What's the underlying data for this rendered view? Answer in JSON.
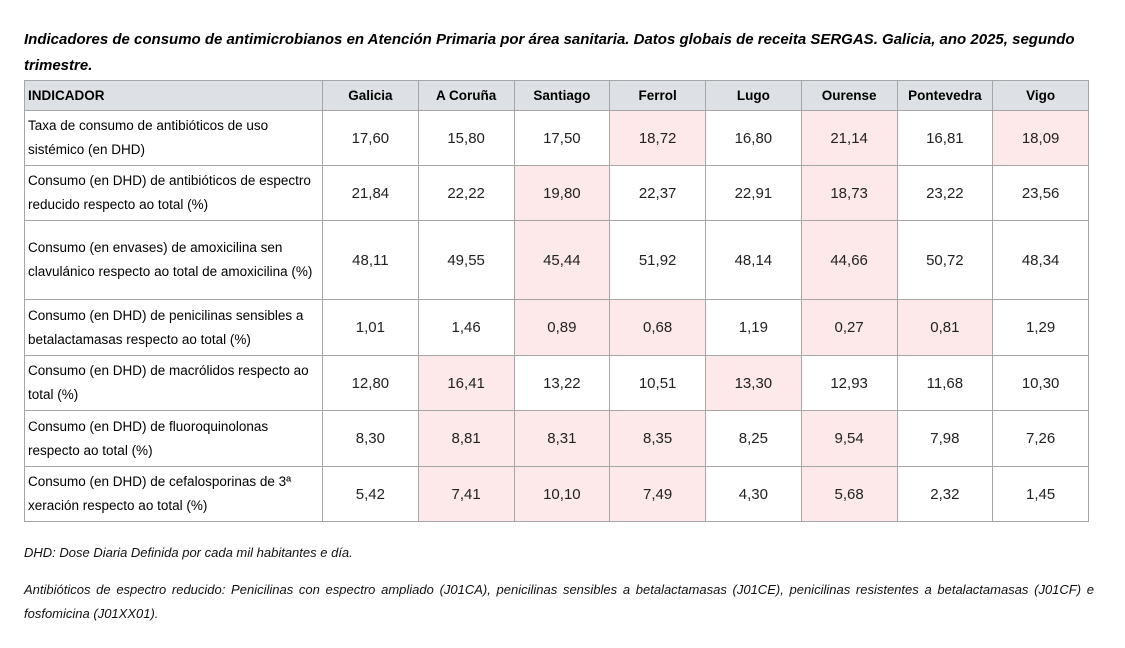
{
  "title": "Indicadores de consumo de antimicrobianos en Atención Primaria por área sanitaria. Datos globais de receita SERGAS. Galicia, ano 2025, segundo trimestre.",
  "highlight_color": "#fde9e9",
  "table": {
    "headers": [
      "INDICADOR",
      "Galicia",
      "A Coruña",
      "Santiago",
      "Ferrol",
      "Lugo",
      "Ourense",
      "Pontevedra",
      "Vigo"
    ],
    "rows": [
      {
        "indicator": "Taxa de consumo de antibióticos de uso sistémico (en DHD)",
        "values": [
          "17,60",
          "15,80",
          "17,50",
          "18,72",
          "16,80",
          "21,14",
          "16,81",
          "18,09"
        ],
        "highlighted": [
          false,
          false,
          false,
          true,
          false,
          true,
          false,
          true
        ]
      },
      {
        "indicator": "Consumo (en DHD) de antibióticos de espectro reducido respecto ao total (%)",
        "values": [
          "21,84",
          "22,22",
          "19,80",
          "22,37",
          "22,91",
          "18,73",
          "23,22",
          "23,56"
        ],
        "highlighted": [
          false,
          false,
          true,
          false,
          false,
          true,
          false,
          false
        ]
      },
      {
        "indicator": "Consumo (en envases) de amoxicilina sen clavulánico respecto ao total de amoxicilina (%)",
        "values": [
          "48,11",
          "49,55",
          "45,44",
          "51,92",
          "48,14",
          "44,66",
          "50,72",
          "48,34"
        ],
        "highlighted": [
          false,
          false,
          true,
          false,
          false,
          true,
          false,
          false
        ]
      },
      {
        "indicator": "Consumo (en DHD) de penicilinas sensibles a betalactamasas respecto ao total (%)",
        "values": [
          "1,01",
          "1,46",
          "0,89",
          "0,68",
          "1,19",
          "0,27",
          "0,81",
          "1,29"
        ],
        "highlighted": [
          false,
          false,
          true,
          true,
          false,
          true,
          true,
          false
        ]
      },
      {
        "indicator": "Consumo (en DHD) de macrólidos respecto ao total (%)",
        "values": [
          "12,80",
          "16,41",
          "13,22",
          "10,51",
          "13,30",
          "12,93",
          "11,68",
          "10,30"
        ],
        "highlighted": [
          false,
          true,
          false,
          false,
          true,
          false,
          false,
          false
        ]
      },
      {
        "indicator": "Consumo (en DHD) de fluoroquinolonas respecto ao total (%)",
        "values": [
          "8,30",
          "8,81",
          "8,31",
          "8,35",
          "8,25",
          "9,54",
          "7,98",
          "7,26"
        ],
        "highlighted": [
          false,
          true,
          true,
          true,
          false,
          true,
          false,
          false
        ]
      },
      {
        "indicator": "Consumo (en DHD) de cefalosporinas de 3ª xeración respecto ao total (%)",
        "values": [
          "5,42",
          "7,41",
          "10,10",
          "7,49",
          "4,30",
          "5,68",
          "2,32",
          "1,45"
        ],
        "highlighted": [
          false,
          true,
          true,
          true,
          false,
          true,
          false,
          false
        ]
      }
    ]
  },
  "notes": [
    "DHD: Dose Diaria Definida por cada mil habitantes e día.",
    "Antibióticos de espectro reducido: Penicilinas con espectro ampliado (J01CA), penicilinas sensibles a betalactamasas (J01CE), penicilinas resistentes a betalactamasas (J01CF) e fosfomicina (J01XX01)."
  ]
}
